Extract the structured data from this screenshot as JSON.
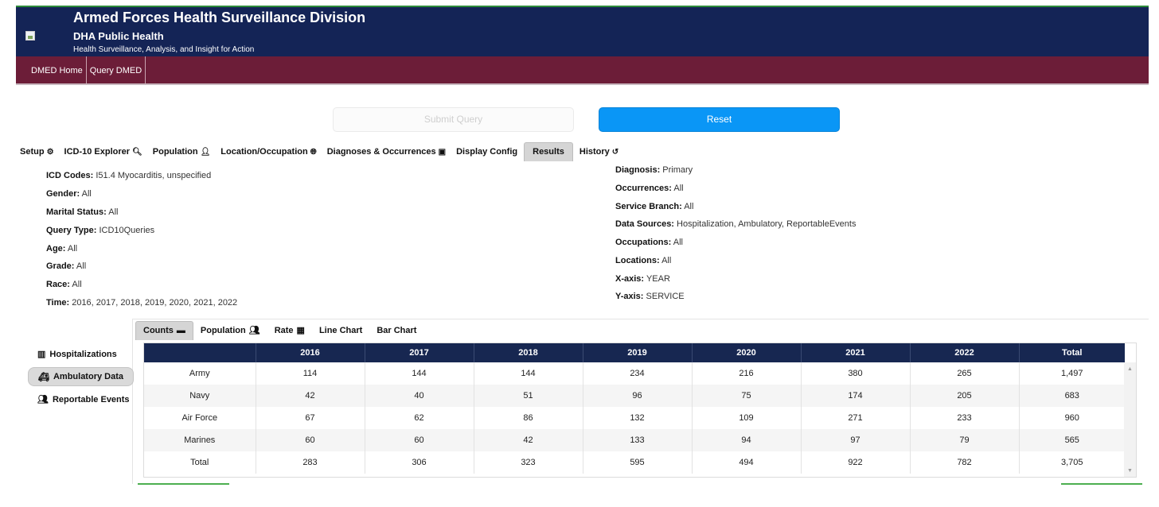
{
  "header": {
    "title": "Armed Forces Health Surveillance Division",
    "subtitle": "DHA Public Health",
    "tagline": "Health Surveillance, Analysis, and Insight for Action"
  },
  "nav": {
    "items": [
      "DMED Home",
      "Query DMED"
    ]
  },
  "buttons": {
    "submit": "Submit Query",
    "reset": "Reset"
  },
  "tabs": [
    {
      "label": "Setup",
      "icon": "gears-icon",
      "glyph": "⚙"
    },
    {
      "label": "ICD-10 Explorer",
      "icon": "search-icon",
      "glyph": "🔍︎"
    },
    {
      "label": "Population",
      "icon": "user-icon",
      "glyph": "👤︎"
    },
    {
      "label": "Location/Occupation",
      "icon": "globe-icon",
      "glyph": "🌐︎"
    },
    {
      "label": "Diagnoses & Occurrences",
      "icon": "medkit-icon",
      "glyph": "▣"
    },
    {
      "label": "Display Config",
      "icon": "",
      "glyph": ""
    },
    {
      "label": "Results",
      "icon": "",
      "glyph": ""
    },
    {
      "label": "History",
      "icon": "history-icon",
      "glyph": "↺"
    }
  ],
  "summary_left": [
    {
      "label": "ICD Codes:",
      "value": "I51.4 Myocarditis, unspecified"
    },
    {
      "label": "Gender:",
      "value": "All"
    },
    {
      "label": "Marital Status:",
      "value": "All"
    },
    {
      "label": "Query Type:",
      "value": "ICD10Queries"
    },
    {
      "label": "Age:",
      "value": "All"
    },
    {
      "label": "Grade:",
      "value": "All"
    },
    {
      "label": "Race:",
      "value": "All"
    },
    {
      "label": "Time:",
      "value": "2016, 2017, 2018, 2019, 2020, 2021, 2022"
    }
  ],
  "summary_right": [
    {
      "label": "Diagnosis:",
      "value": "Primary"
    },
    {
      "label": "Occurrences:",
      "value": "All"
    },
    {
      "label": "Service Branch:",
      "value": "All"
    },
    {
      "label": "Data Sources:",
      "value": "Hospitalization, Ambulatory, ReportableEvents"
    },
    {
      "label": "Occupations:",
      "value": "All"
    },
    {
      "label": "Locations:",
      "value": "All"
    },
    {
      "label": "X-axis:",
      "value": "YEAR"
    },
    {
      "label": "Y-axis:",
      "value": "SERVICE"
    }
  ],
  "subtabs": [
    {
      "label": "Counts",
      "icon": "archive-icon",
      "glyph": "▬"
    },
    {
      "label": "Population",
      "icon": "users-icon",
      "glyph": "👥︎"
    },
    {
      "label": "Rate",
      "icon": "table-icon",
      "glyph": "▦"
    },
    {
      "label": "Line Chart",
      "icon": "",
      "glyph": ""
    },
    {
      "label": "Bar Chart",
      "icon": "",
      "glyph": ""
    }
  ],
  "data_sources": [
    {
      "label": "Hospitalizations",
      "icon": "hospital-icon",
      "glyph": "▥"
    },
    {
      "label": "Ambulatory Data",
      "icon": "ambulance-icon",
      "glyph": "🚑︎"
    },
    {
      "label": "Reportable Events",
      "icon": "users-icon",
      "glyph": "👥︎"
    }
  ],
  "table": {
    "columns": [
      "",
      "2016",
      "2017",
      "2018",
      "2019",
      "2020",
      "2021",
      "2022",
      "Total"
    ],
    "rows": [
      [
        "Army",
        "114",
        "144",
        "144",
        "234",
        "216",
        "380",
        "265",
        "1,497"
      ],
      [
        "Navy",
        "42",
        "40",
        "51",
        "96",
        "75",
        "174",
        "205",
        "683"
      ],
      [
        "Air Force",
        "67",
        "62",
        "86",
        "132",
        "109",
        "271",
        "233",
        "960"
      ],
      [
        "Marines",
        "60",
        "60",
        "42",
        "133",
        "94",
        "97",
        "79",
        "565"
      ],
      [
        "Total",
        "283",
        "306",
        "323",
        "595",
        "494",
        "922",
        "782",
        "3,705"
      ]
    ]
  }
}
